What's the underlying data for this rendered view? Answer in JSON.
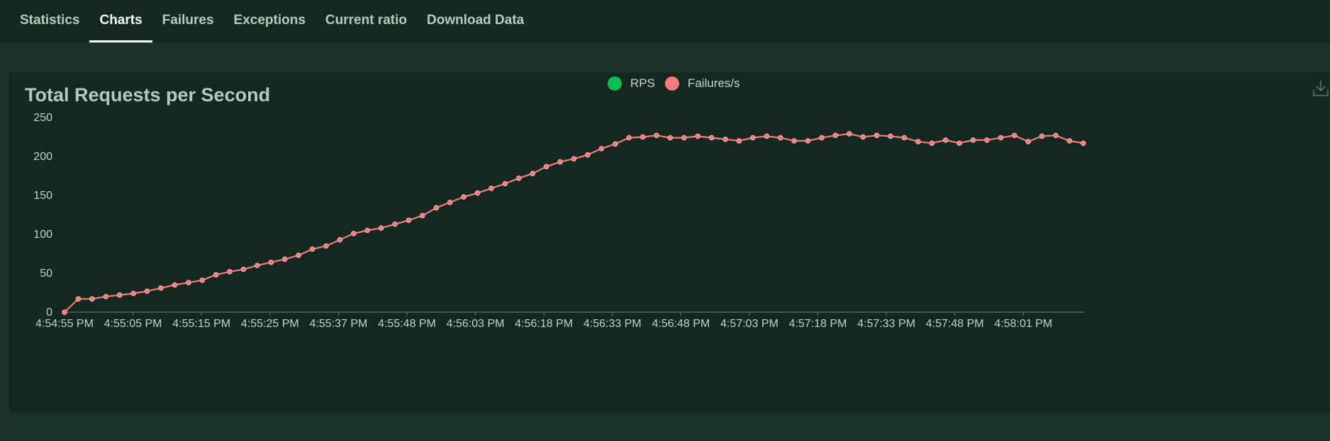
{
  "tabs": [
    {
      "label": "Statistics",
      "active": false
    },
    {
      "label": "Charts",
      "active": true
    },
    {
      "label": "Failures",
      "active": false
    },
    {
      "label": "Exceptions",
      "active": false
    },
    {
      "label": "Current ratio",
      "active": false
    },
    {
      "label": "Download Data",
      "active": false
    }
  ],
  "chart_panel": {
    "download_icon": "download-icon"
  },
  "colors": {
    "rps": "#0fc04f",
    "failures": "#f37b7b",
    "background": "#1b3329",
    "panel": "#142821"
  },
  "chart_data": {
    "type": "line",
    "title": "Total Requests per Second",
    "legend": [
      "RPS",
      "Failures/s"
    ],
    "legend_position": "top-center",
    "grid": false,
    "ylim": [
      0,
      250
    ],
    "yticks": [
      0,
      50,
      100,
      150,
      200,
      250
    ],
    "xtick_labels": [
      "4:54:55 PM",
      "4:55:05 PM",
      "4:55:15 PM",
      "4:55:25 PM",
      "4:55:37 PM",
      "4:55:48 PM",
      "4:56:03 PM",
      "4:56:18 PM",
      "4:56:33 PM",
      "4:56:48 PM",
      "4:57:03 PM",
      "4:57:18 PM",
      "4:57:33 PM",
      "4:57:48 PM",
      "4:58:01 PM"
    ],
    "series": [
      {
        "name": "Failures/s",
        "values": [
          0,
          17,
          17,
          20,
          22,
          24,
          27,
          31,
          35,
          38,
          41,
          48,
          52,
          55,
          60,
          64,
          68,
          73,
          81,
          85,
          93,
          101,
          105,
          108,
          113,
          118,
          124,
          134,
          141,
          148,
          153,
          159,
          165,
          172,
          178,
          187,
          193,
          197,
          202,
          210,
          216,
          224,
          225,
          227,
          224,
          224,
          226,
          224,
          222,
          220,
          224,
          226,
          224,
          220,
          220,
          224,
          227,
          229,
          225,
          227,
          226,
          224,
          219,
          217,
          221,
          217,
          221,
          221,
          224,
          227,
          219,
          226,
          227,
          220,
          217
        ]
      }
    ]
  }
}
